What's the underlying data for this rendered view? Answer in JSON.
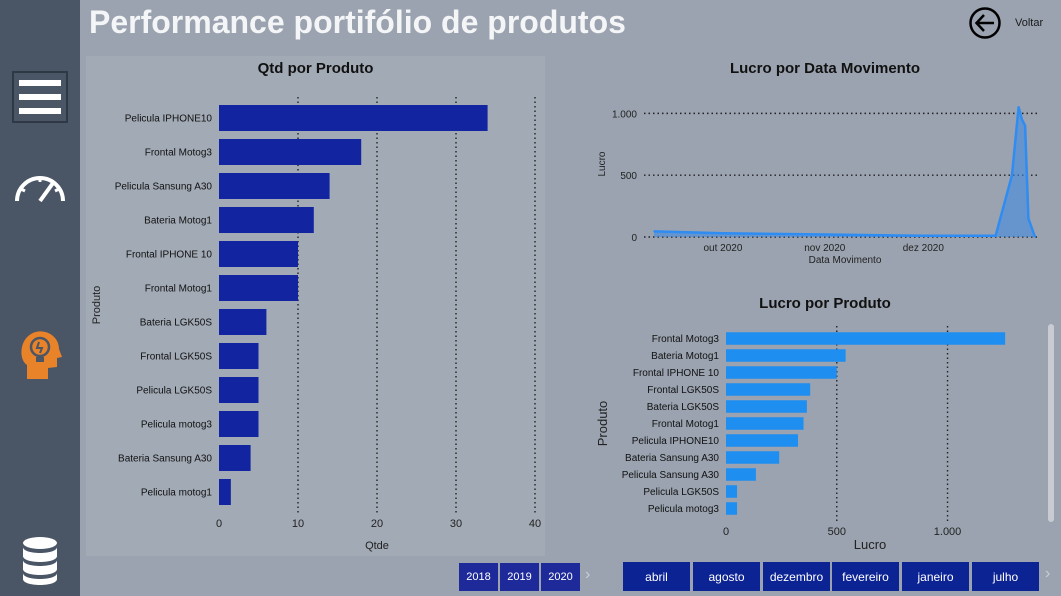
{
  "page": {
    "title": "Performance portifólio de produtos",
    "back_label": "Voltar"
  },
  "sidebar": {
    "items": [
      {
        "icon": "hamburger-menu-icon"
      },
      {
        "icon": "speedometer-icon"
      },
      {
        "icon": "lightbulb-head-icon",
        "color": "#e8832a"
      },
      {
        "icon": "database-icon"
      }
    ]
  },
  "charts": {
    "qtd": {
      "title": "Qtd por Produto",
      "xlabel": "Qtde",
      "ylabel": "Produto"
    },
    "lucro_data": {
      "title": "Lucro por Data Movimento",
      "xlabel": "Data Movimento",
      "ylabel": "Lucro"
    },
    "lucro_produto": {
      "title": "Lucro por Produto",
      "xlabel": "Lucro",
      "ylabel": "Produto"
    }
  },
  "chart_data": [
    {
      "type": "bar",
      "orientation": "horizontal",
      "title": "Qtd por Produto",
      "xlabel": "Qtde",
      "ylabel": "Produto",
      "categories": [
        "Pelicula IPHONE10",
        "Frontal Motog3",
        "Pelicula Sansung A30",
        "Bateria Motog1",
        "Frontal IPHONE 10",
        "Frontal Motog1",
        "Bateria LGK50S",
        "Frontal LGK50S",
        "Pelicula LGK50S",
        "Pelicula motog3",
        "Bateria Sansung A30",
        "Pelicula motog1"
      ],
      "values": [
        34,
        18,
        14,
        12,
        10,
        10,
        6,
        5,
        5,
        5,
        4,
        1.5
      ],
      "xlim": [
        0,
        40
      ],
      "ticks": [
        0,
        10,
        20,
        30,
        40
      ],
      "tick_labels": [
        "0",
        "10",
        "20",
        "30",
        "40"
      ],
      "grid": true,
      "color": "#1324a0"
    },
    {
      "type": "area",
      "title": "Lucro por Data Movimento",
      "xlabel": "Data Movimento",
      "ylabel": "Lucro",
      "x": [
        "2020-09-10",
        "2020-10-01",
        "2020-11-01",
        "2020-12-01",
        "2020-12-23",
        "2020-12-28",
        "2020-12-30",
        "2020-12-31",
        "2021-01-01",
        "2021-01-02",
        "2021-01-04"
      ],
      "y": [
        45,
        30,
        20,
        10,
        10,
        500,
        1050,
        950,
        900,
        150,
        0
      ],
      "ylim": [
        0,
        1100
      ],
      "yticks": [
        0,
        500,
        1000
      ],
      "ytick_labels": [
        "0",
        "500",
        "1.000"
      ],
      "xtick_labels": [
        "out 2020",
        "nov 2020",
        "dez 2020"
      ],
      "xtick_dates": [
        "2020-10-01",
        "2020-11-01",
        "2020-12-01"
      ],
      "grid": true,
      "color": "#2f8cf2"
    },
    {
      "type": "bar",
      "orientation": "horizontal",
      "title": "Lucro por Produto",
      "xlabel": "Lucro",
      "ylabel": "Produto",
      "categories": [
        "Frontal Motog3",
        "Bateria Motog1",
        "Frontal IPHONE 10",
        "Frontal LGK50S",
        "Bateria LGK50S",
        "Frontal Motog1",
        "Pelicula IPHONE10",
        "Bateria Sansung A30",
        "Pelicula Sansung A30",
        "Pelicula LGK50S",
        "Pelicula motog3"
      ],
      "values": [
        1260,
        540,
        500,
        380,
        365,
        350,
        325,
        240,
        135,
        50,
        50
      ],
      "xlim": [
        0,
        1300
      ],
      "ticks": [
        0,
        500,
        1000
      ],
      "tick_labels": [
        "0",
        "500",
        "1.000"
      ],
      "grid": true,
      "color": "#1e8ef0"
    }
  ],
  "slicers": {
    "years": [
      "2018",
      "2019",
      "2020"
    ],
    "months": [
      "abril",
      "agosto",
      "dezembro",
      "fevereiro",
      "janeiro",
      "julho"
    ]
  }
}
